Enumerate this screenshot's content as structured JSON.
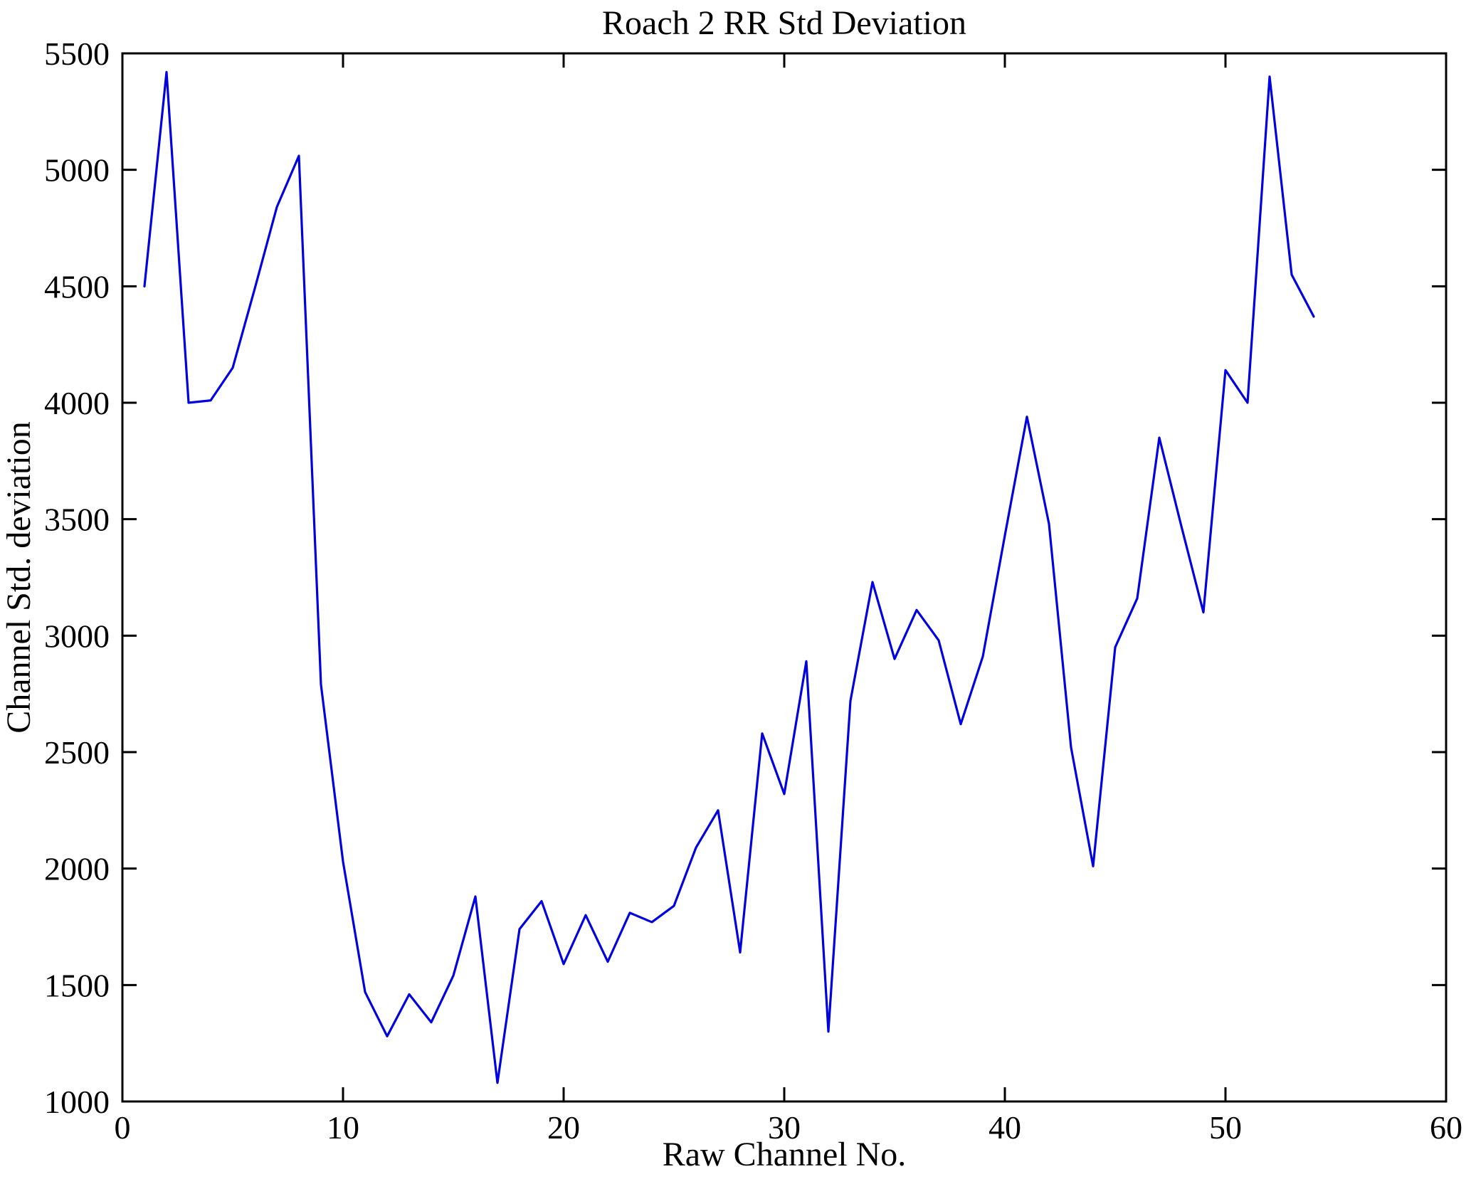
{
  "page": {
    "background": "#ffffff"
  },
  "chart_data": {
    "type": "line",
    "title": "Roach 2 RR Std Deviation",
    "xlabel": "Raw Channel No.",
    "ylabel": "Channel Std. deviation",
    "xlim": [
      0,
      60
    ],
    "ylim": [
      1000,
      5500
    ],
    "xticks": [
      0,
      10,
      20,
      30,
      40,
      50,
      60
    ],
    "yticks": [
      1000,
      1500,
      2000,
      2500,
      3000,
      3500,
      4000,
      4500,
      5000,
      5500
    ],
    "grid": false,
    "legend_position": "none",
    "line_color": "#0000e0",
    "axis_color": "#000000",
    "x": [
      1,
      2,
      3,
      4,
      5,
      6,
      7,
      8,
      9,
      10,
      11,
      12,
      13,
      14,
      15,
      16,
      17,
      18,
      19,
      20,
      21,
      22,
      23,
      24,
      25,
      26,
      27,
      28,
      29,
      30,
      31,
      32,
      33,
      34,
      35,
      36,
      37,
      38,
      39,
      40,
      41,
      42,
      43,
      44,
      45,
      46,
      47,
      48,
      49,
      50,
      51,
      52,
      53,
      54
    ],
    "series": [
      {
        "name": "Channel Std. deviation",
        "values": [
          4500,
          5420,
          4000,
          4010,
          4150,
          4490,
          4840,
          5060,
          2790,
          2030,
          1470,
          1280,
          1460,
          1340,
          1540,
          1880,
          1080,
          1740,
          1860,
          1590,
          1800,
          1600,
          1810,
          1770,
          1840,
          2090,
          2250,
          1640,
          2580,
          2320,
          2890,
          1300,
          2720,
          3230,
          2900,
          3110,
          2980,
          2620,
          2910,
          3430,
          3940,
          3480,
          2520,
          2010,
          2950,
          3160,
          3850,
          3470,
          3100,
          4140,
          4000,
          5400,
          4550,
          4370
        ]
      }
    ]
  }
}
